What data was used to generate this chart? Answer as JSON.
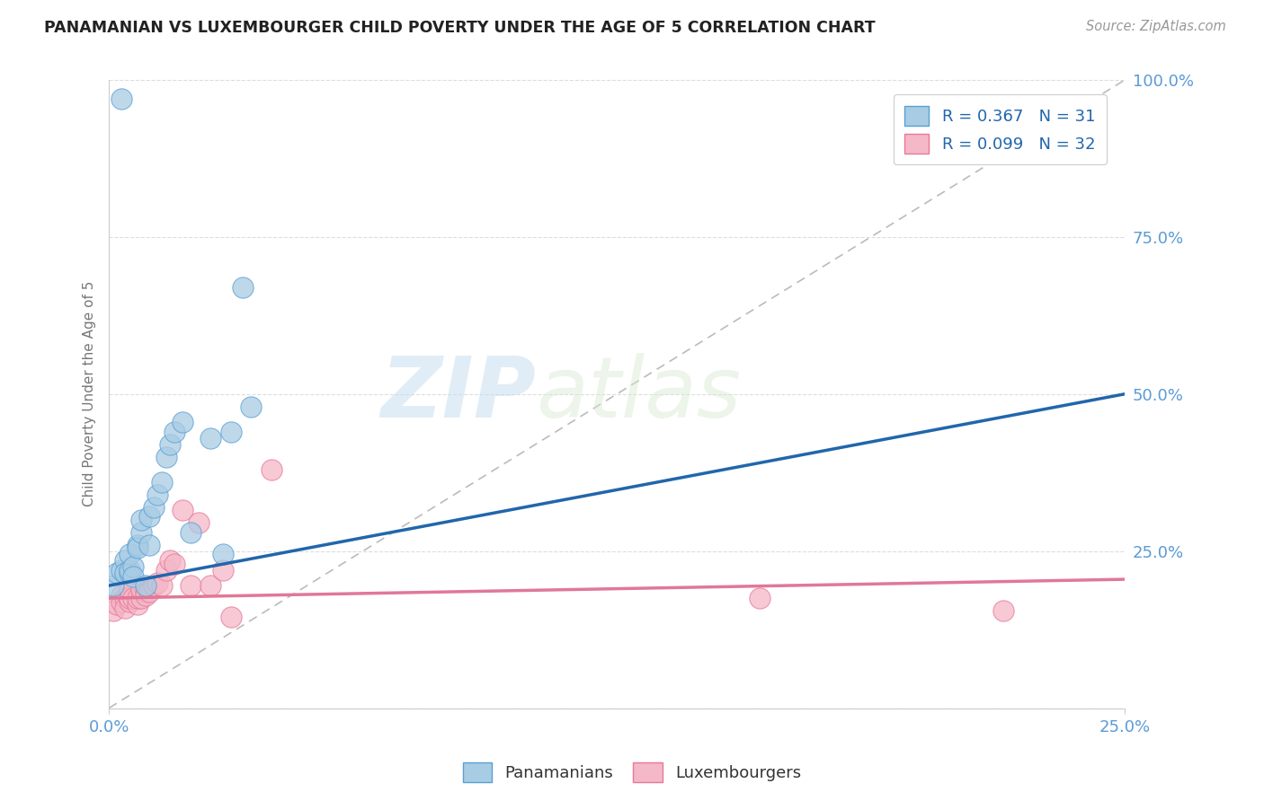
{
  "title": "PANAMANIAN VS LUXEMBOURGER CHILD POVERTY UNDER THE AGE OF 5 CORRELATION CHART",
  "source_text": "Source: ZipAtlas.com",
  "ylabel": "Child Poverty Under the Age of 5",
  "r_blue": 0.367,
  "n_blue": 31,
  "r_pink": 0.099,
  "n_pink": 32,
  "blue_color": "#a8cce4",
  "pink_color": "#f4b8c8",
  "blue_edge_color": "#5a9fd4",
  "pink_edge_color": "#e87898",
  "blue_line_color": "#2166ac",
  "pink_line_color": "#e07898",
  "legend_labels": [
    "Panamanians",
    "Luxembourgers"
  ],
  "watermark_zip": "ZIP",
  "watermark_atlas": "atlas",
  "blue_scatter_x": [
    0.001,
    0.002,
    0.003,
    0.003,
    0.004,
    0.004,
    0.005,
    0.005,
    0.005,
    0.006,
    0.006,
    0.007,
    0.007,
    0.008,
    0.008,
    0.009,
    0.01,
    0.01,
    0.011,
    0.012,
    0.013,
    0.014,
    0.015,
    0.016,
    0.018,
    0.02,
    0.025,
    0.028,
    0.03,
    0.035,
    0.033
  ],
  "blue_scatter_y": [
    0.195,
    0.215,
    0.97,
    0.22,
    0.235,
    0.215,
    0.215,
    0.22,
    0.245,
    0.225,
    0.21,
    0.26,
    0.255,
    0.28,
    0.3,
    0.195,
    0.305,
    0.26,
    0.32,
    0.34,
    0.36,
    0.4,
    0.42,
    0.44,
    0.455,
    0.28,
    0.43,
    0.245,
    0.44,
    0.48,
    0.67
  ],
  "pink_scatter_x": [
    0.001,
    0.002,
    0.003,
    0.003,
    0.004,
    0.004,
    0.005,
    0.005,
    0.005,
    0.006,
    0.007,
    0.007,
    0.008,
    0.008,
    0.009,
    0.009,
    0.01,
    0.011,
    0.012,
    0.013,
    0.014,
    0.015,
    0.016,
    0.018,
    0.02,
    0.022,
    0.025,
    0.028,
    0.03,
    0.04,
    0.22,
    0.16
  ],
  "pink_scatter_y": [
    0.155,
    0.165,
    0.18,
    0.17,
    0.175,
    0.16,
    0.17,
    0.175,
    0.19,
    0.175,
    0.165,
    0.175,
    0.175,
    0.19,
    0.185,
    0.18,
    0.185,
    0.195,
    0.2,
    0.195,
    0.22,
    0.235,
    0.23,
    0.315,
    0.195,
    0.295,
    0.195,
    0.22,
    0.145,
    0.38,
    0.155,
    0.175
  ],
  "blue_trend_x": [
    0.0,
    0.25
  ],
  "blue_trend_y": [
    0.195,
    0.5
  ],
  "pink_trend_x": [
    0.0,
    0.25
  ],
  "pink_trend_y": [
    0.175,
    0.205
  ],
  "ref_line_x": [
    0.0,
    0.25
  ],
  "ref_line_y": [
    0.0,
    1.0
  ],
  "xlim": [
    0.0,
    0.25
  ],
  "ylim": [
    0.0,
    1.0
  ],
  "yticks": [
    0.0,
    0.25,
    0.5,
    0.75,
    1.0
  ],
  "ytick_labels": [
    "",
    "25.0%",
    "50.0%",
    "75.0%",
    "100.0%"
  ],
  "xtick_labels": [
    "0.0%",
    "25.0%"
  ],
  "axis_label_color": "#5b9bd5",
  "title_color": "#222222",
  "source_color": "#999999",
  "ylabel_color": "#777777",
  "grid_color": "#dddddd",
  "spine_color": "#cccccc"
}
